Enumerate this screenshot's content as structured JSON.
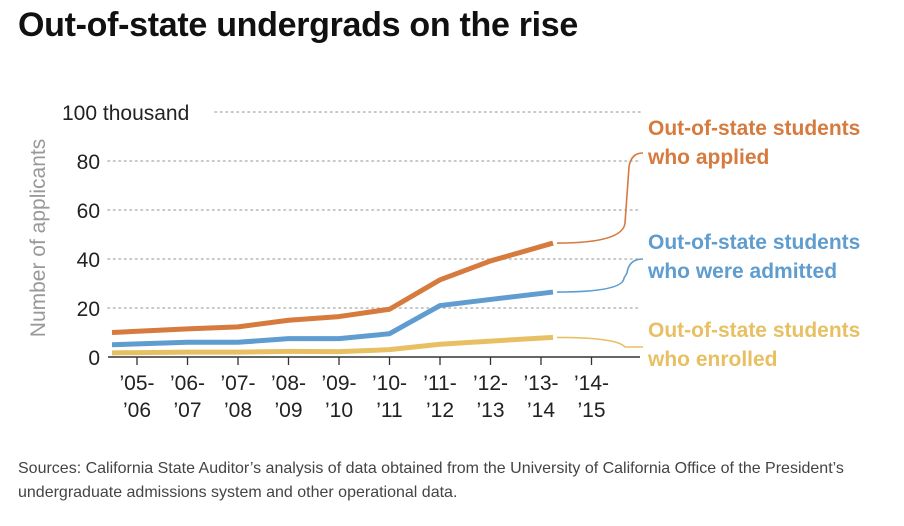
{
  "title": "Out-of-state undergrads on the rise",
  "source": "Sources: California State Auditor’s analysis of data obtained from the University of California Office of the President’s undergraduate admissions system and other operational data.",
  "chart_data": {
    "type": "line",
    "title": "Out-of-state undergrads on the rise",
    "ylabel": "Number of applicants",
    "xlabel": "",
    "ylim": [
      0,
      100
    ],
    "y_ticks": [
      "0",
      "20",
      "40",
      "60",
      "80",
      "100 thousand"
    ],
    "y_tick_values": [
      0,
      20,
      40,
      60,
      80,
      100
    ],
    "grid": true,
    "categories": [
      "’05-’06",
      "’06-’07",
      "’07-’08",
      "’08-’09",
      "’09-’10",
      "’10-’11",
      "’11-’12",
      "’12-’13",
      "’13-’14",
      "’14-’15"
    ],
    "x_tick_lines": [
      [
        "’05-",
        "’06"
      ],
      [
        "’06-",
        "’07"
      ],
      [
        "’07-",
        "’08"
      ],
      [
        "’08-",
        "’09"
      ],
      [
        "’09-",
        "’10"
      ],
      [
        "’10-",
        "’11"
      ],
      [
        "’11-",
        "’12"
      ],
      [
        "’12-",
        "’13"
      ],
      [
        "’13-",
        "’14"
      ],
      [
        "’14-",
        "’15"
      ]
    ],
    "series": [
      {
        "name": "Out-of-state students who applied",
        "label_lines": [
          "Out-of-state students",
          "who applied"
        ],
        "color": "#d77a3d",
        "values": [
          10,
          11.5,
          12.3,
          15,
          16.5,
          19.5,
          31.5,
          39.2,
          46.5,
          null
        ]
      },
      {
        "name": "Out-of-state students who were admitted",
        "label_lines": [
          "Out-of-state students",
          "who were admitted"
        ],
        "color": "#5f9cd0",
        "values": [
          5,
          6,
          6,
          7.5,
          7.5,
          9.5,
          21,
          23.5,
          26.5,
          null
        ]
      },
      {
        "name": "Out-of-state students who enrolled",
        "label_lines": [
          "Out-of-state students",
          "who enrolled"
        ],
        "color": "#e8c064",
        "values": [
          1.7,
          2,
          2,
          2.3,
          2.2,
          3,
          5.2,
          6.5,
          8,
          null
        ]
      }
    ]
  }
}
